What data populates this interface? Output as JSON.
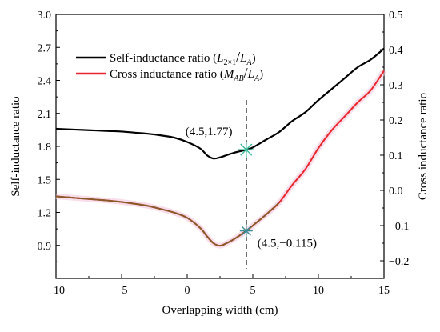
{
  "chart_data": {
    "type": "line",
    "xlabel": "Overlapping width (cm)",
    "ylabel_left": "Self-inductance ratio",
    "ylabel_right": "Cross inductance ratio",
    "xlim": [
      -10,
      15
    ],
    "ylim_left": [
      0.6,
      3.0
    ],
    "ylim_right": [
      -0.25,
      0.5
    ],
    "x_ticks": [
      "−10",
      "−5",
      "0",
      "5",
      "10",
      "15"
    ],
    "x_tick_values": [
      -10,
      -5,
      0,
      5,
      10,
      15
    ],
    "y_left_ticks": [
      "0.9",
      "1.2",
      "1.5",
      "1.8",
      "2.1",
      "2.4",
      "2.7",
      "3.0"
    ],
    "y_left_tick_values": [
      0.9,
      1.2,
      1.5,
      1.8,
      2.1,
      2.4,
      2.7,
      3.0
    ],
    "y_right_ticks": [
      "−0.2",
      "−0.1",
      "0.0",
      "0.1",
      "0.2",
      "0.3",
      "0.4",
      "0.5"
    ],
    "y_right_tick_values": [
      -0.2,
      -0.1,
      0.0,
      0.1,
      0.2,
      0.3,
      0.4,
      0.5
    ],
    "grid": false,
    "legend_position": "top-left",
    "series": [
      {
        "name": "Self-inductance ratio",
        "axis": "left",
        "color": "#000000",
        "x": [
          -10,
          -9,
          -8,
          -7,
          -6,
          -5,
          -4,
          -3,
          -2,
          -1,
          0,
          1,
          1.5,
          2,
          2.5,
          3,
          3.5,
          4,
          4.5,
          5,
          6,
          7,
          8,
          9,
          10,
          11,
          12,
          13,
          14,
          15
        ],
        "y": [
          1.96,
          1.955,
          1.95,
          1.945,
          1.94,
          1.935,
          1.925,
          1.915,
          1.9,
          1.88,
          1.84,
          1.78,
          1.72,
          1.69,
          1.7,
          1.72,
          1.74,
          1.755,
          1.77,
          1.79,
          1.86,
          1.93,
          2.03,
          2.11,
          2.22,
          2.32,
          2.42,
          2.52,
          2.59,
          2.69
        ]
      },
      {
        "name": "Cross inductance ratio",
        "axis": "right",
        "color": "#e8262b",
        "x": [
          -10,
          -9,
          -8,
          -7,
          -6,
          -5,
          -4,
          -3,
          -2,
          -1,
          0,
          1,
          1.5,
          2,
          2.5,
          3,
          3.5,
          4,
          4.5,
          5,
          6,
          7,
          8,
          9,
          10,
          11,
          12,
          13,
          14,
          15
        ],
        "y": [
          -0.017,
          -0.02,
          -0.023,
          -0.026,
          -0.029,
          -0.033,
          -0.038,
          -0.044,
          -0.053,
          -0.063,
          -0.078,
          -0.107,
          -0.13,
          -0.15,
          -0.157,
          -0.15,
          -0.14,
          -0.128,
          -0.115,
          -0.1,
          -0.069,
          -0.035,
          0.015,
          0.06,
          0.12,
          0.17,
          0.21,
          0.25,
          0.285,
          0.34
        ]
      }
    ],
    "legend_entries": [
      {
        "text": "Self-inductance ratio (",
        "math_base": "L",
        "math_sub": "2×1",
        "math_slash": "/",
        "math_base2": "L",
        "math_sub2": "A",
        "close": ")",
        "color": "#000000"
      },
      {
        "text": "Cross inductance ratio (",
        "math_base": "M",
        "math_sub": "AB",
        "math_slash": "/",
        "math_base2": "L",
        "math_sub2": "A",
        "close": ")",
        "color": "#e8262b"
      }
    ],
    "annotations": [
      {
        "label": "(4.5,1.77)",
        "x": 4.5,
        "y": 1.77,
        "axis": "left",
        "marker_color": "#3cb99a"
      },
      {
        "label": "(4.5,−0.115)",
        "x": 4.5,
        "y": -0.115,
        "axis": "right",
        "marker_color": "#3a8e9a"
      }
    ],
    "vline_x": 4.5
  }
}
